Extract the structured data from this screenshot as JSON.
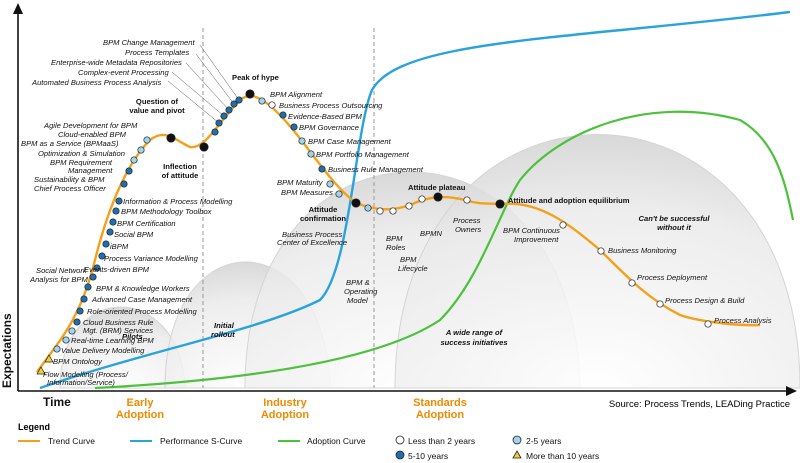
{
  "axes": {
    "x_label": "Time",
    "y_label": "Expectations"
  },
  "phases": [
    {
      "line1": "Early",
      "line2": "Adoption"
    },
    {
      "line1": "Industry",
      "line2": "Adoption"
    },
    {
      "line1": "Standards",
      "line2": "Adoption"
    }
  ],
  "source": "Source: Process Trends, LEADing Practice",
  "legend": {
    "title": "Legend",
    "trend": "Trend Curve",
    "performance": "Performance S-Curve",
    "adoption": "Adoption Curve",
    "lt2": "Less than 2 years",
    "y2to5": "2-5 years",
    "y5to10": "5-10 years",
    "gt10": "More than 10 years"
  },
  "regions": {
    "pilots": "Pilots",
    "initial_l1": "Initial",
    "initial_l2": "rollout",
    "range_l1": "A wide range of",
    "range_l2": "success initiatives",
    "cant_l1": "Can't be successful",
    "cant_l2": "without it"
  },
  "milestones": {
    "question_l1": "Question of",
    "question_l2": "value and pivot",
    "inflection_l1": "Inflection",
    "inflection_l2": "of attitude",
    "peak": "Peak of hype",
    "confirm_l1": "Attitude",
    "confirm_l2": "confirmation",
    "plateau": "Attitude plateau",
    "equilibrium": "Attitude and adoption equilibrium"
  },
  "colors": {
    "trend": "#f5a01a",
    "performance": "#2aa3dc",
    "adoption": "#4cc23c",
    "dot_lt2": "#ffffff",
    "dot_2to5": "#9fd4ec",
    "dot_5to10": "#1f6fae",
    "dot_gt10": "#f2cf3a"
  },
  "items_left": [
    "Flow Modelling (Process/",
    "Information/Service)",
    "BPM Ontology",
    "Value Delivery Modelling",
    "Real-time Learning BPM",
    "Cloud Business Rule",
    "Mgt. (BRM) Services",
    "Role-oriented Process Modelling",
    "Advanced Case Management",
    "BPM & Knowledge Workers",
    "Social Network",
    "Analysis for BPM",
    "Events-driven BPM",
    "Process Variance Modelling",
    "iBPM",
    "Social BPM",
    "BPM Certification",
    "BPM Methodology Toolbox",
    "Information & Process Modelling",
    "Chief Process Officer",
    "Sustainability & BPM",
    "BPM Requirement",
    "Management",
    "Optimization & Simulation",
    "BPM as a Service (BPMaaS)",
    "Cloud-enabled BPM",
    "Agile Development for BPM",
    "Automated Business Process Analysis",
    "Complex-event Processing",
    "Enterprise-wide Metadata Repositories",
    "Process Templates",
    "BPM Change Management"
  ],
  "items_right": [
    "BPM Alignment",
    "Business Process Outsourcing",
    "Evidence-Based BPM",
    "BPM Governance",
    "BPM Case Management",
    "BPM Portfolio Management",
    "Business Rule Management",
    "BPM Maturity",
    "BPM Measures",
    "Business Process",
    "Center of Excellence",
    "BPM &",
    "Operating",
    "Model",
    "BPM",
    "Roles",
    "BPM",
    "Lifecycle",
    "BPMN",
    "Process",
    "Owners",
    "BPM Continuous",
    "Improvement",
    "Business Monitoring",
    "Process Deployment",
    "Process Design & Build",
    "Process Analysis"
  ]
}
